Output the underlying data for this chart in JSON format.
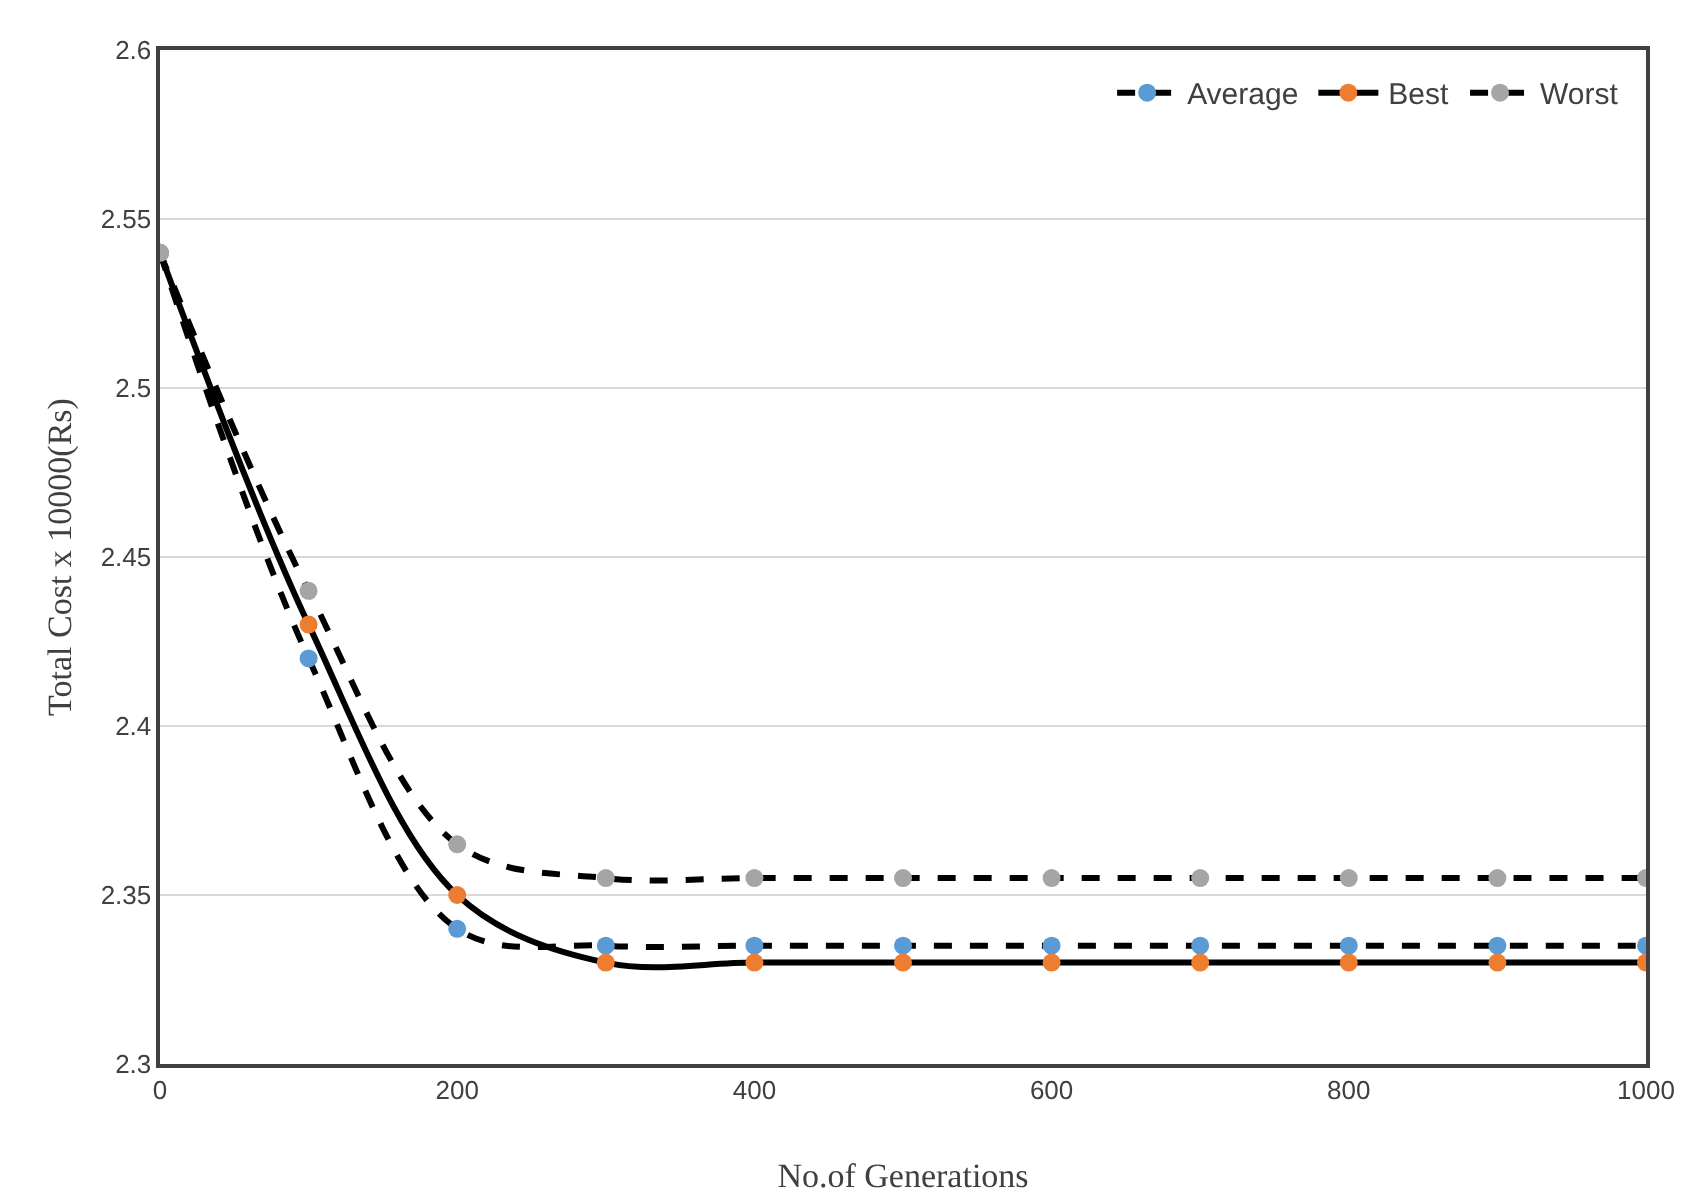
{
  "chart_data": {
    "type": "line",
    "xlabel": "No.of Generations",
    "ylabel": "Total Cost x 10000(Rs)",
    "x": [
      0,
      100,
      200,
      300,
      400,
      500,
      600,
      700,
      800,
      900,
      1000
    ],
    "series": [
      {
        "name": "Average",
        "color": "#5b9bd5",
        "line_style": "dashed",
        "values": [
          2.54,
          2.42,
          2.34,
          2.335,
          2.335,
          2.335,
          2.335,
          2.335,
          2.335,
          2.335,
          2.335
        ]
      },
      {
        "name": "Best",
        "color": "#ed7d31",
        "line_style": "solid",
        "values": [
          2.54,
          2.43,
          2.35,
          2.33,
          2.33,
          2.33,
          2.33,
          2.33,
          2.33,
          2.33,
          2.33
        ]
      },
      {
        "name": "Worst",
        "color": "#a5a5a5",
        "line_style": "dashed",
        "values": [
          2.54,
          2.44,
          2.365,
          2.355,
          2.355,
          2.355,
          2.355,
          2.355,
          2.355,
          2.355,
          2.355
        ]
      }
    ],
    "xlim": [
      0,
      1000
    ],
    "xticks": [
      0,
      200,
      400,
      600,
      800,
      1000
    ],
    "ylim": [
      2.3,
      2.6
    ],
    "yticks": [
      2.3,
      2.35,
      2.4,
      2.45,
      2.5,
      2.55,
      2.6
    ],
    "grid": "y",
    "legend": "top right",
    "marker": "circle"
  }
}
